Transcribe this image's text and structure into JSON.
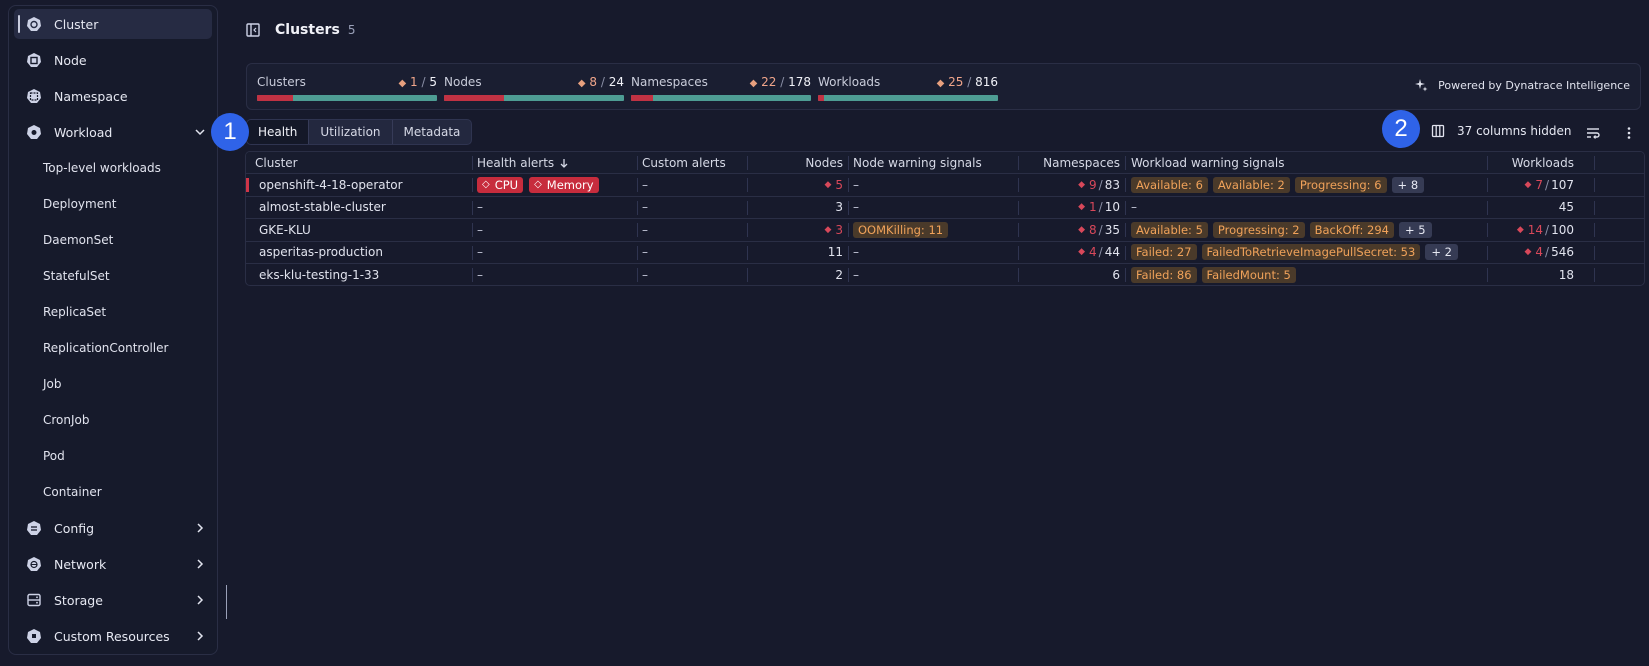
{
  "sidebar": {
    "items": [
      {
        "label": "Cluster",
        "icon": "k8s-cluster-icon"
      },
      {
        "label": "Node",
        "icon": "k8s-node-icon"
      },
      {
        "label": "Namespace",
        "icon": "k8s-namespace-icon"
      },
      {
        "label": "Workload",
        "icon": "k8s-workload-icon"
      },
      {
        "label": "Config",
        "icon": "k8s-config-icon"
      },
      {
        "label": "Network",
        "icon": "k8s-network-icon"
      },
      {
        "label": "Storage",
        "icon": "storage-icon"
      },
      {
        "label": "Custom Resources",
        "icon": "custom-resources-icon"
      }
    ],
    "workload_children": [
      "Top-level workloads",
      "Deployment",
      "DaemonSet",
      "StatefulSet",
      "ReplicaSet",
      "ReplicationController",
      "Job",
      "CronJob",
      "Pod",
      "Container"
    ]
  },
  "header": {
    "title": "Clusters",
    "count": "5"
  },
  "summary": {
    "metrics": [
      {
        "label": "Clusters",
        "warn": "1",
        "sep": "/",
        "total": "5",
        "fraction": 0.2
      },
      {
        "label": "Nodes",
        "warn": "8",
        "sep": "/",
        "total": "24",
        "fraction": 0.333
      },
      {
        "label": "Namespaces",
        "warn": "22",
        "sep": "/",
        "total": "178",
        "fraction": 0.124
      },
      {
        "label": "Workloads",
        "warn": "25",
        "sep": "/",
        "total": "816",
        "fraction": 0.031
      }
    ],
    "powered_by": "Powered by Dynatrace Intelligence"
  },
  "tabs": [
    "Health",
    "Utilization",
    "Metadata"
  ],
  "annotations": [
    "1",
    "2"
  ],
  "toolbar": {
    "columns_hidden": "37 columns hidden"
  },
  "table": {
    "headers": {
      "cluster": "Cluster",
      "health_alerts": "Health alerts",
      "custom_alerts": "Custom alerts",
      "nodes": "Nodes",
      "node_warning_signals": "Node warning signals",
      "namespaces": "Namespaces",
      "workload_warning_signals": "Workload warning signals",
      "workloads": "Workloads"
    },
    "dash": "–",
    "rows": [
      {
        "cluster": "openshift-4-18-operator",
        "health_alerts": [
          "CPU",
          "Memory"
        ],
        "custom_alerts": "–",
        "nodes": {
          "warn": "5",
          "total": ""
        },
        "node_signals": [],
        "namespaces": {
          "warn": "9",
          "total": "83"
        },
        "workload_signals": [
          "Available: 6",
          "Available: 2",
          "Progressing: 6"
        ],
        "workload_more": "+ 8",
        "workloads": {
          "warn": "7",
          "total": "107"
        }
      },
      {
        "cluster": "almost-stable-cluster",
        "health_alerts": [],
        "custom_alerts": "–",
        "nodes": {
          "warn": "",
          "total": "3"
        },
        "node_signals": [],
        "namespaces": {
          "warn": "1",
          "total": "10"
        },
        "workload_signals": [],
        "workload_more": "",
        "workloads": {
          "warn": "",
          "total": "45"
        }
      },
      {
        "cluster": "GKE-KLU",
        "health_alerts": [],
        "custom_alerts": "–",
        "nodes": {
          "warn": "3",
          "total": ""
        },
        "node_signals": [
          "OOMKilling: 11"
        ],
        "namespaces": {
          "warn": "8",
          "total": "35"
        },
        "workload_signals": [
          "Available: 5",
          "Progressing: 2",
          "BackOff: 294"
        ],
        "workload_more": "+ 5",
        "workloads": {
          "warn": "14",
          "total": "100"
        }
      },
      {
        "cluster": "asperitas-production",
        "health_alerts": [],
        "custom_alerts": "–",
        "nodes": {
          "warn": "",
          "total": "11"
        },
        "node_signals": [],
        "namespaces": {
          "warn": "4",
          "total": "44"
        },
        "workload_signals": [
          "Failed: 27",
          "FailedToRetrieveImagePullSecret: 53"
        ],
        "workload_more": "+ 2",
        "workloads": {
          "warn": "4",
          "total": "546"
        }
      },
      {
        "cluster": "eks-klu-testing-1-33",
        "health_alerts": [],
        "custom_alerts": "–",
        "nodes": {
          "warn": "",
          "total": "2"
        },
        "node_signals": [],
        "namespaces": {
          "warn": "",
          "total": "6"
        },
        "workload_signals": [
          "Failed: 86",
          "FailedMount: 5"
        ],
        "workload_more": "",
        "workloads": {
          "warn": "",
          "total": "18"
        }
      }
    ]
  },
  "colors": {
    "accent_red": "#c72c3d",
    "bar_ok": "#4e9d94",
    "warn_orange": "#f0a25a",
    "badge_blue": "#2f63e8"
  }
}
